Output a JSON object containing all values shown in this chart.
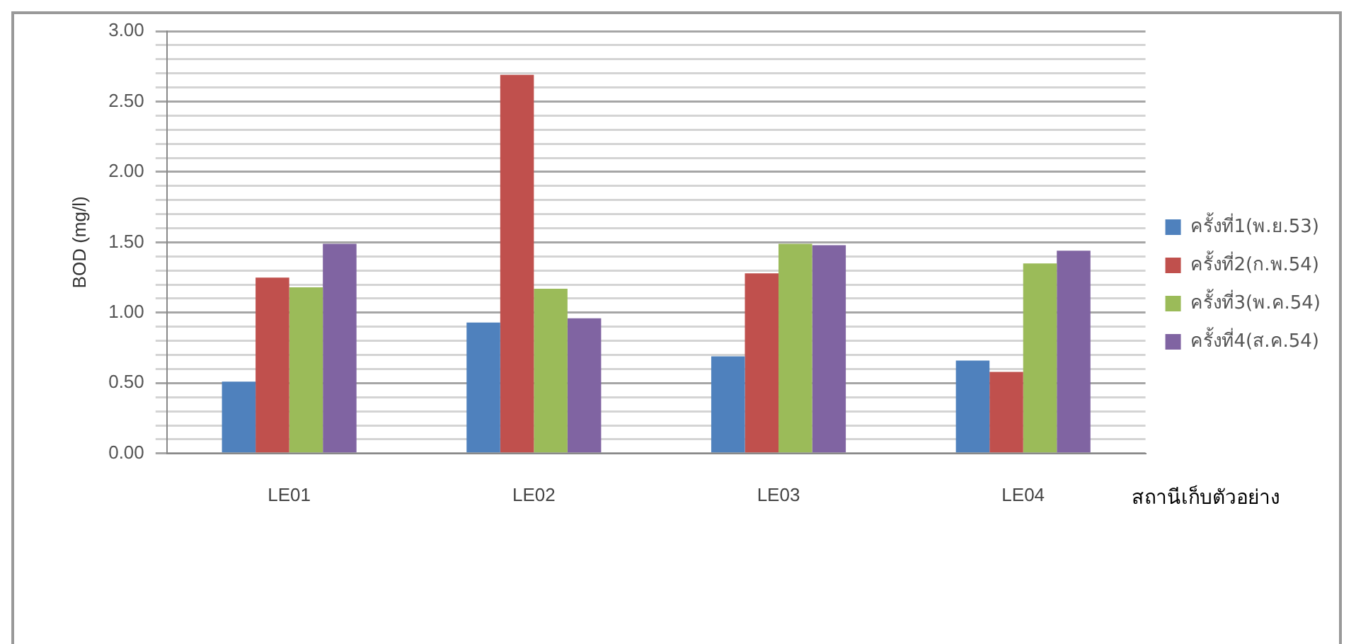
{
  "chart_data": {
    "type": "bar",
    "ylabel": "BOD (mg/l)",
    "xlabel": "สถานีเก็บตัวอย่าง",
    "categories": [
      "LE01",
      "LE02",
      "LE03",
      "LE04"
    ],
    "series": [
      {
        "name": "ครั้งที่1(พ.ย.53)",
        "color": "#4f81bd",
        "values": [
          0.51,
          0.93,
          0.69,
          0.66
        ]
      },
      {
        "name": "ครั้งที่2(ก.พ.54)",
        "color": "#c0504d",
        "values": [
          1.25,
          2.69,
          1.28,
          0.58
        ]
      },
      {
        "name": "ครั้งที่3(พ.ค.54)",
        "color": "#9bbb59",
        "values": [
          1.18,
          1.17,
          1.49,
          1.35
        ]
      },
      {
        "name": "ครั้งที่4(ส.ค.54)",
        "color": "#8064a2",
        "values": [
          1.49,
          0.96,
          1.48,
          1.44
        ]
      }
    ],
    "ylim": [
      0,
      3
    ],
    "yticks": [
      {
        "value": 0,
        "label": "0.00"
      },
      {
        "value": 0.1,
        "label": null
      },
      {
        "value": 0.2,
        "label": null
      },
      {
        "value": 0.3,
        "label": null
      },
      {
        "value": 0.4,
        "label": null
      },
      {
        "value": 0.5,
        "label": "0.50"
      },
      {
        "value": 0.6,
        "label": null
      },
      {
        "value": 0.7,
        "label": null
      },
      {
        "value": 0.8,
        "label": null
      },
      {
        "value": 0.9,
        "label": null
      },
      {
        "value": 1,
        "label": "1.00"
      },
      {
        "value": 1.1,
        "label": null
      },
      {
        "value": 1.2,
        "label": null
      },
      {
        "value": 1.3,
        "label": null
      },
      {
        "value": 1.4,
        "label": null
      },
      {
        "value": 1.5,
        "label": "1.50"
      },
      {
        "value": 1.6,
        "label": null
      },
      {
        "value": 1.7,
        "label": null
      },
      {
        "value": 1.8,
        "label": null
      },
      {
        "value": 1.9,
        "label": null
      },
      {
        "value": 2,
        "label": "2.00"
      },
      {
        "value": 2.1,
        "label": null
      },
      {
        "value": 2.2,
        "label": null
      },
      {
        "value": 2.3,
        "label": null
      },
      {
        "value": 2.4,
        "label": null
      },
      {
        "value": 2.5,
        "label": "2.50"
      },
      {
        "value": 2.6,
        "label": null
      },
      {
        "value": 2.7,
        "label": null
      },
      {
        "value": 2.8,
        "label": null
      },
      {
        "value": 2.9,
        "label": null
      },
      {
        "value": 3,
        "label": "3.00"
      }
    ],
    "grid": "y",
    "legend": "right"
  }
}
